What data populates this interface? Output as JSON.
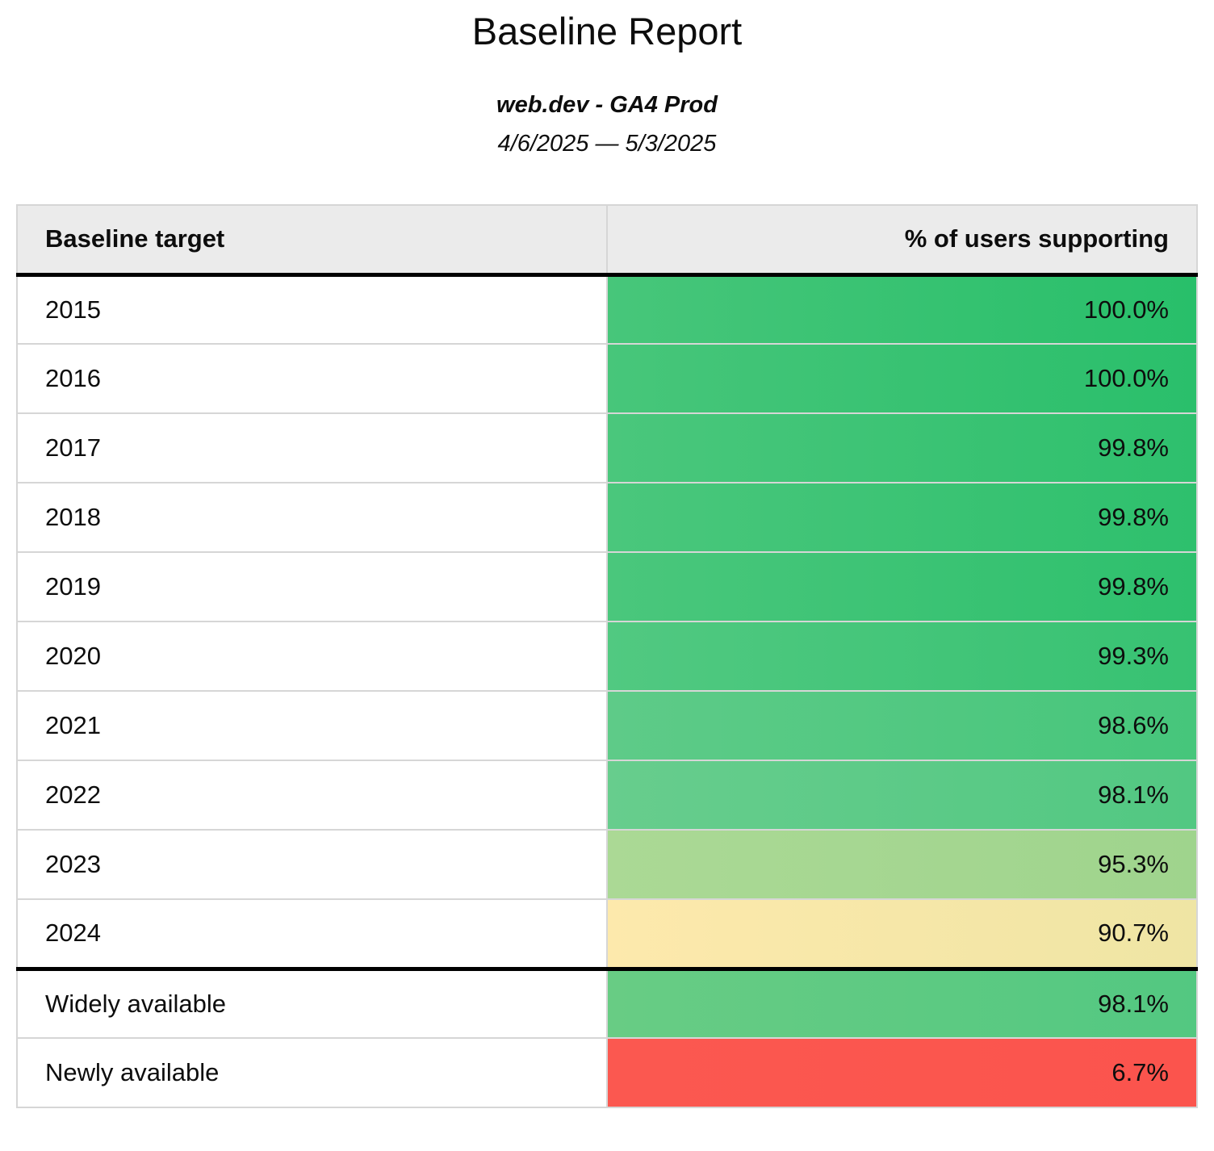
{
  "page": {
    "title": "Baseline Report",
    "subtitle": "web.dev - GA4 Prod",
    "date_range": "4/6/2025 — 5/3/2025"
  },
  "table": {
    "columns": [
      {
        "label": "Baseline target"
      },
      {
        "label": "% of users supporting"
      }
    ],
    "rows": [
      {
        "target": "2015",
        "value": "100.0%",
        "color_from": "#47c67a",
        "color_to": "#28bf6a"
      },
      {
        "target": "2016",
        "value": "100.0%",
        "color_from": "#47c67a",
        "color_to": "#2abf6b"
      },
      {
        "target": "2017",
        "value": "99.8%",
        "color_from": "#4ac77c",
        "color_to": "#2ec06d"
      },
      {
        "target": "2018",
        "value": "99.8%",
        "color_from": "#4ac77c",
        "color_to": "#2ec06d"
      },
      {
        "target": "2019",
        "value": "99.8%",
        "color_from": "#4ac77c",
        "color_to": "#2ec06d"
      },
      {
        "target": "2020",
        "value": "99.3%",
        "color_from": "#51c981",
        "color_to": "#37c272"
      },
      {
        "target": "2021",
        "value": "98.6%",
        "color_from": "#5ecb88",
        "color_to": "#46c67b"
      },
      {
        "target": "2022",
        "value": "98.1%",
        "color_from": "#67cd8d",
        "color_to": "#52c882"
      },
      {
        "target": "2023",
        "value": "95.3%",
        "color_from": "#abd995",
        "color_to": "#9fd48d"
      },
      {
        "target": "2024",
        "value": "90.7%",
        "color_from": "#fde9ac",
        "color_to": "#efe5a4"
      },
      {
        "target": "Widely available",
        "value": "98.1%",
        "color_from": "#68cc84",
        "color_to": "#53c881"
      },
      {
        "target": "Newly available",
        "value": "6.7%",
        "color_from": "#fb5850",
        "color_to": "#fb544d"
      }
    ]
  },
  "chart_data": {
    "type": "table",
    "title": "Baseline Report",
    "subtitle": "web.dev - GA4 Prod",
    "date_range": "4/6/2025 — 5/3/2025",
    "columns": [
      "Baseline target",
      "% of users supporting"
    ],
    "categories": [
      "2015",
      "2016",
      "2017",
      "2018",
      "2019",
      "2020",
      "2021",
      "2022",
      "2023",
      "2024",
      "Widely available",
      "Newly available"
    ],
    "values": [
      100.0,
      100.0,
      99.8,
      99.8,
      99.8,
      99.3,
      98.6,
      98.1,
      95.3,
      90.7,
      98.1,
      6.7
    ],
    "value_unit": "%",
    "color_coding": "cell background scales green (high) through yellow to red (low)"
  }
}
